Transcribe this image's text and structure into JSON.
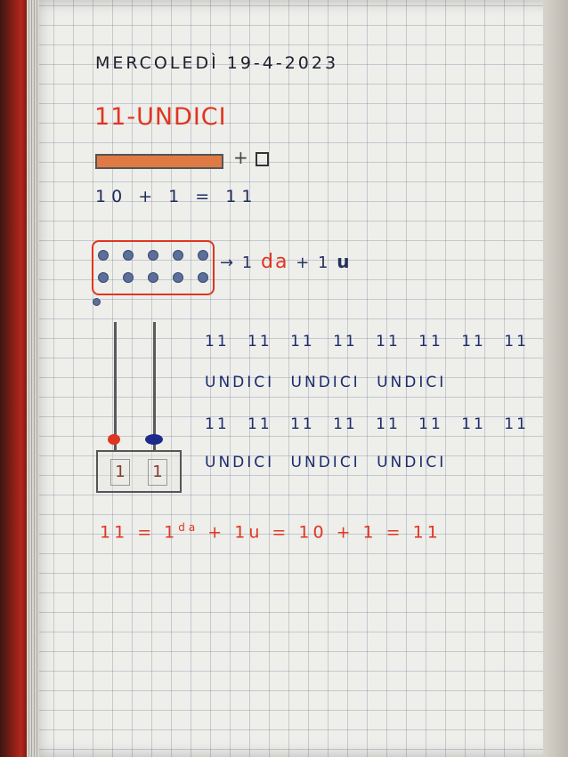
{
  "notebook": {
    "date": "MERCOLEDÌ 19-4-2023",
    "title": "11-UNDICI",
    "bar_expression": "+",
    "equation_1": "10 + 1 = 11",
    "ten_frame": {
      "dots_top_row": 5,
      "dots_bottom_row": 5,
      "dots_outside": 1
    },
    "decomposition": {
      "arrow": "→ 1",
      "tens_unit": "da",
      "plus": "+ 1",
      "ones_unit": "u"
    },
    "practice_rows": [
      "11 11 11 11 11 11 11 11",
      "UNDICI UNDICI UNDICI",
      "11 11 11 11 11 11 11 11",
      "UNDICI UNDICI UNDICI"
    ],
    "abacus": {
      "tens_digit": "1",
      "ones_digit": "1",
      "tens_bead_color": "#e0351f",
      "ones_bead_color": "#1c2c8c"
    },
    "final_equation": {
      "prefix": "11 = 1",
      "sup": "da",
      "suffix": " + 1u = 10 + 1 = 11"
    }
  }
}
